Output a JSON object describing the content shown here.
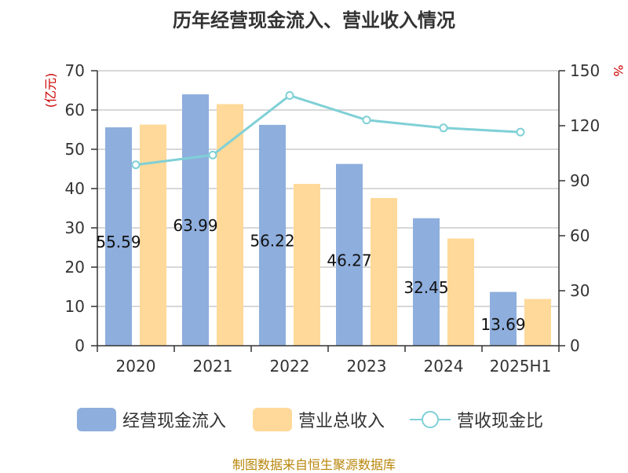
{
  "title": "历年经营现金流入、营业收入情况",
  "left_unit": "(亿元)",
  "right_unit": "%",
  "legend": {
    "cash_inflow": "经营现金流入",
    "revenue": "营业总收入",
    "ratio": "营收现金比"
  },
  "source": "制图数据来自恒生聚源数据库",
  "colors": {
    "cash_inflow": "#8eaedd",
    "revenue": "#ffd999",
    "ratio": "#7fd0d6"
  },
  "chart_data": {
    "type": "bar",
    "categories": [
      "2020",
      "2021",
      "2022",
      "2023",
      "2024",
      "2025H1"
    ],
    "series": [
      {
        "name": "经营现金流入",
        "type": "bar",
        "axis": "left",
        "values": [
          55.59,
          63.99,
          56.22,
          46.27,
          32.45,
          13.69
        ],
        "labels": [
          "55.59",
          "63.99",
          "56.22",
          "46.27",
          "32.45",
          "13.69"
        ]
      },
      {
        "name": "营业总收入",
        "type": "bar",
        "axis": "left",
        "values": [
          56.3,
          61.5,
          41.2,
          37.6,
          27.3,
          11.9
        ]
      },
      {
        "name": "营收现金比",
        "type": "line",
        "axis": "right",
        "values": [
          98.7,
          104.0,
          136.5,
          123.1,
          118.8,
          116.5
        ]
      }
    ],
    "ylim": [
      0,
      70
    ],
    "y_ticks": [
      0,
      10,
      20,
      30,
      40,
      50,
      60,
      70
    ],
    "y2lim": [
      0,
      150
    ],
    "y2_ticks": [
      0,
      30,
      60,
      90,
      120,
      150
    ],
    "grid": true,
    "legend_position": "bottom"
  }
}
